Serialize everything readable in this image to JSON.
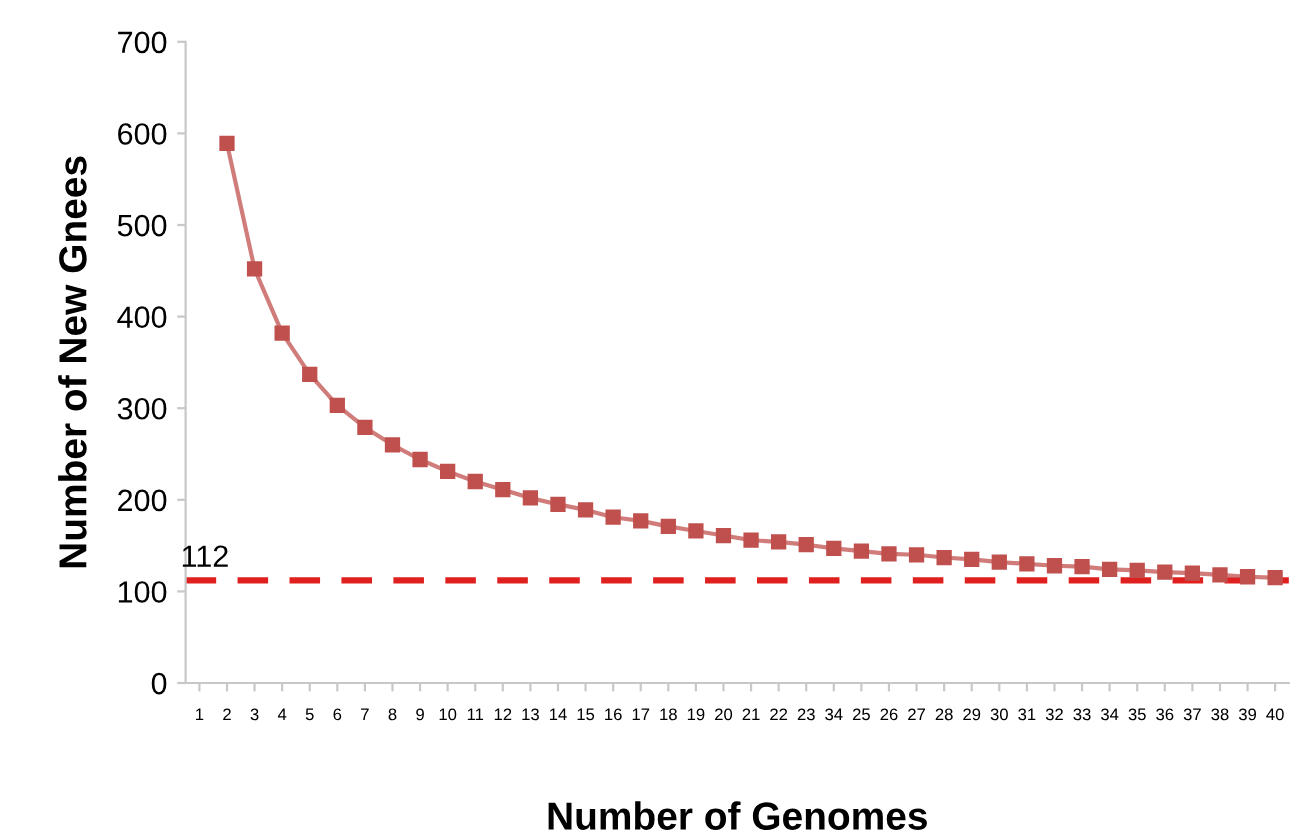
{
  "chart_data": {
    "type": "line",
    "xlabel": "Number of Genomes",
    "ylabel": "Number of New Gnees",
    "categories": [
      "1",
      "2",
      "3",
      "4",
      "5",
      "6",
      "7",
      "8",
      "9",
      "10",
      "11",
      "12",
      "13",
      "14",
      "15",
      "16",
      "17",
      "18",
      "19",
      "20",
      "21",
      "22",
      "23",
      "34",
      "25",
      "26",
      "27",
      "28",
      "29",
      "30",
      "31",
      "32",
      "33",
      "34",
      "35",
      "36",
      "37",
      "38",
      "39",
      "40"
    ],
    "series": [
      {
        "color": "#c0504d",
        "values": [
          null,
          589,
          452,
          382,
          337,
          303,
          279,
          260,
          244,
          231,
          220,
          211,
          202,
          195,
          189,
          181,
          177,
          171,
          166,
          161,
          156,
          154,
          151,
          147,
          144,
          141,
          140,
          137,
          135,
          132,
          130,
          128,
          127,
          124,
          123,
          121,
          120,
          118,
          116,
          115
        ]
      }
    ],
    "ylim": [
      0,
      700
    ],
    "yticks": [
      0,
      100,
      200,
      300,
      400,
      500,
      600,
      700
    ],
    "ref_lines": [
      {
        "axis": "y",
        "value": 112,
        "label": "112",
        "color": "#e0201e",
        "line_style": "dashed"
      }
    ],
    "marker": "square",
    "line_style": "solid",
    "grid": false,
    "legend": false
  }
}
